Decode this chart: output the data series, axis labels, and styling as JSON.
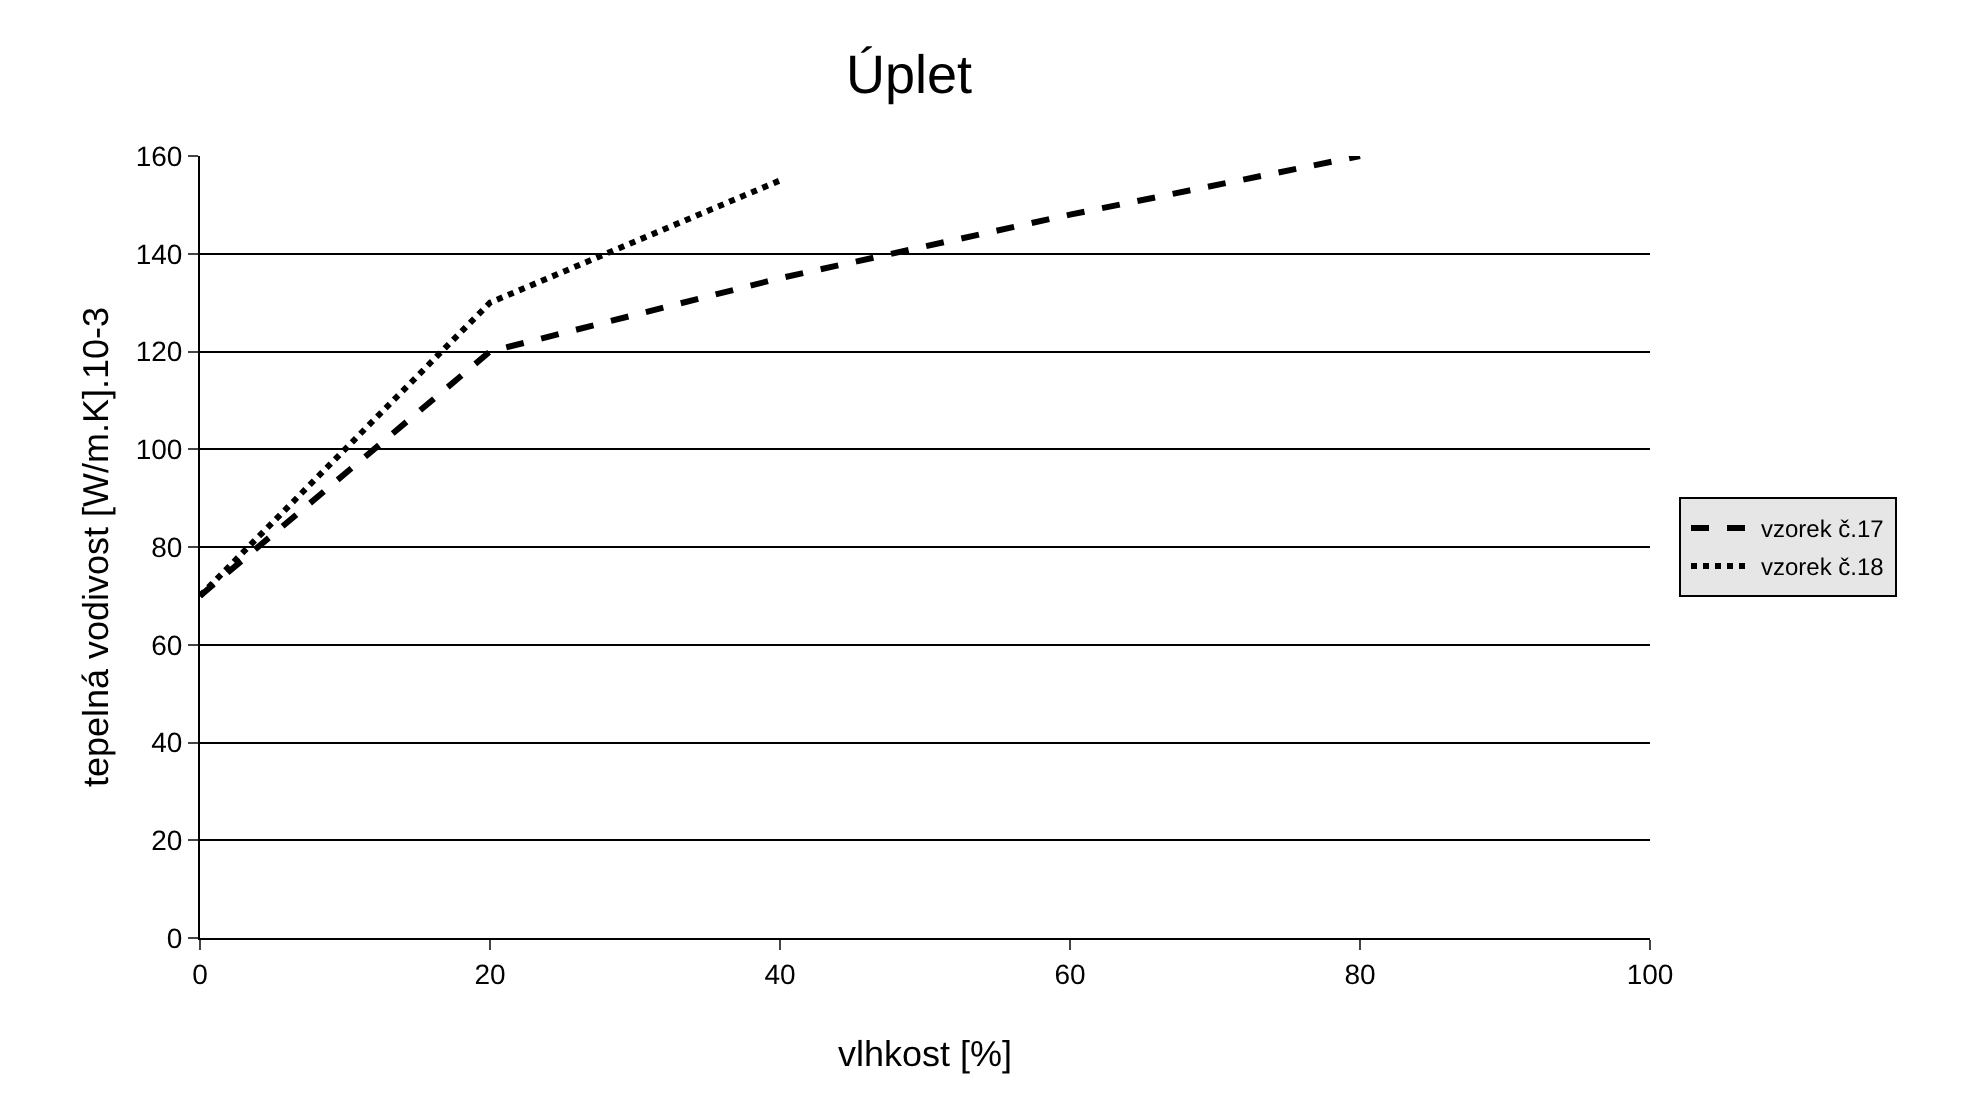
{
  "chart_data": {
    "type": "line",
    "title": "Úplet",
    "xlabel": "vlhkost [%]",
    "ylabel": "tepelná vodivost [W/m.K].10-3",
    "xlim": [
      0,
      100
    ],
    "xticks": [
      0,
      20,
      40,
      60,
      80,
      100
    ],
    "ylim": [
      0,
      160
    ],
    "yticks": [
      0,
      20,
      40,
      60,
      80,
      100,
      120,
      140,
      160
    ],
    "grid": "y",
    "legend": "right",
    "marker": "none",
    "series": [
      {
        "name": "vzorek č.17",
        "color": "#000000",
        "line_style": "dashed",
        "x": [
          0,
          20,
          40,
          60,
          80
        ],
        "values": [
          70,
          120,
          135,
          148,
          160
        ]
      },
      {
        "name": "vzorek č.18",
        "color": "#000000",
        "line_style": "dotted",
        "x": [
          0,
          20,
          40
        ],
        "values": [
          70,
          130,
          155
        ]
      }
    ]
  }
}
